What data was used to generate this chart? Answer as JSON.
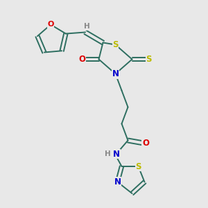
{
  "background_color": "#e8e8e8",
  "bond_color": "#2d6e60",
  "atom_colors": {
    "O": "#dd0000",
    "N": "#0000cc",
    "S": "#bbbb00",
    "H": "#888888",
    "C": "#2d6e60"
  },
  "figsize": [
    3.0,
    3.0
  ],
  "dpi": 100,
  "xlim": [
    0,
    10
  ],
  "ylim": [
    0,
    10
  ]
}
